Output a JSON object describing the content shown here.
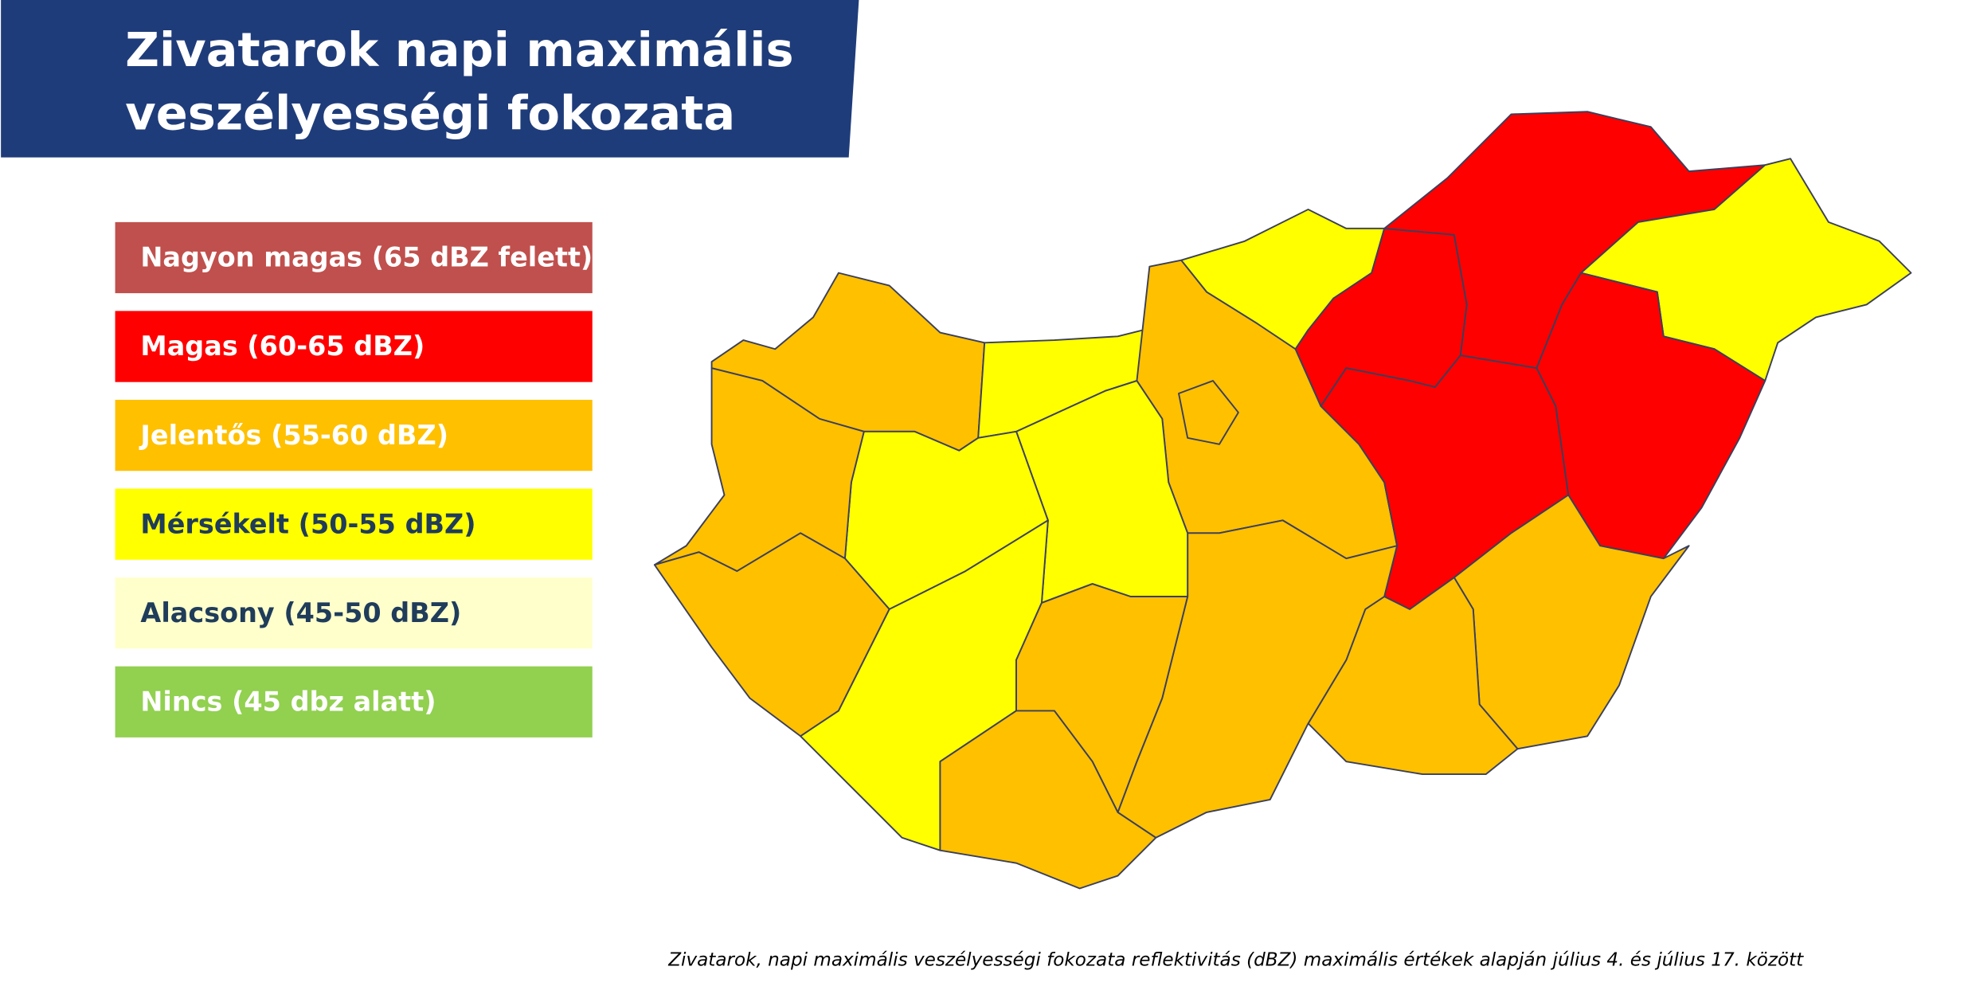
{
  "header": {
    "title": [
      "Zivatarok napi maximális",
      "veszélyességi fokozata"
    ]
  },
  "legend": [
    {
      "label": "Nagyon magas (65 dBZ felett)",
      "color": "#c0504d",
      "text_color": "#ffffff"
    },
    {
      "label": "Magas (60-65 dBZ)",
      "color": "#ff0000",
      "text_color": "#ffffff"
    },
    {
      "label": "Jelentős (55-60 dBZ)",
      "color": "#ffc000",
      "text_color": "#ffffff"
    },
    {
      "label": "Mérsékelt (50-55 dBZ)",
      "color": "#ffff00",
      "text_color": "#1f3c5a"
    },
    {
      "label": "Alacsony (45-50 dBZ)",
      "color": "#ffffcc",
      "text_color": "#1f3c5a"
    },
    {
      "label": "Nincs (45 dbz alatt)",
      "color": "#92d050",
      "text_color": "#ffffff"
    }
  ],
  "footnote": "Zivatarok, napi maximális veszélyességi fokozata reflektivitás (dBZ) maximális értékek alapján július 4. és július 17.  között"
}
